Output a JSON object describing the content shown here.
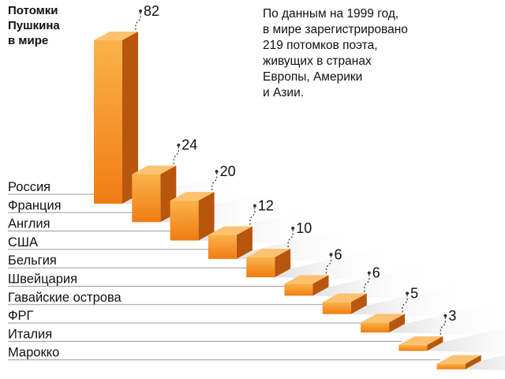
{
  "title": "Потомки\nПушкина\nв мире",
  "note": "По данным на 1999 год,\nв мире зарегистрировано\n219 потомков поэта,\nживущих в странах\nЕвропы, Америки\nи Азии.",
  "chart_data": {
    "type": "bar",
    "style": "3d-staircase",
    "title": "Потомки Пушкина в мире",
    "categories": [
      "Россия",
      "Франция",
      "Англия",
      "США",
      "Бельгия",
      "Швейцария",
      "Гавайские острова",
      "ФРГ",
      "Италия",
      "Марокко"
    ],
    "values": [
      82,
      24,
      20,
      12,
      10,
      6,
      6,
      5,
      3,
      1
    ],
    "value_labels": [
      "82",
      "24",
      "20",
      "12",
      "10",
      "6",
      "6",
      "5",
      "3",
      ""
    ],
    "ylim": [
      0,
      82
    ],
    "grid": false,
    "legend": "none",
    "colors": {
      "bar_front_top": "#fbb24a",
      "bar_front_bottom": "#f07c12",
      "bar_side": "#b8560e",
      "bar_top": "#fdc270",
      "shadow": "#c8c8c8",
      "text": "#111111"
    }
  }
}
